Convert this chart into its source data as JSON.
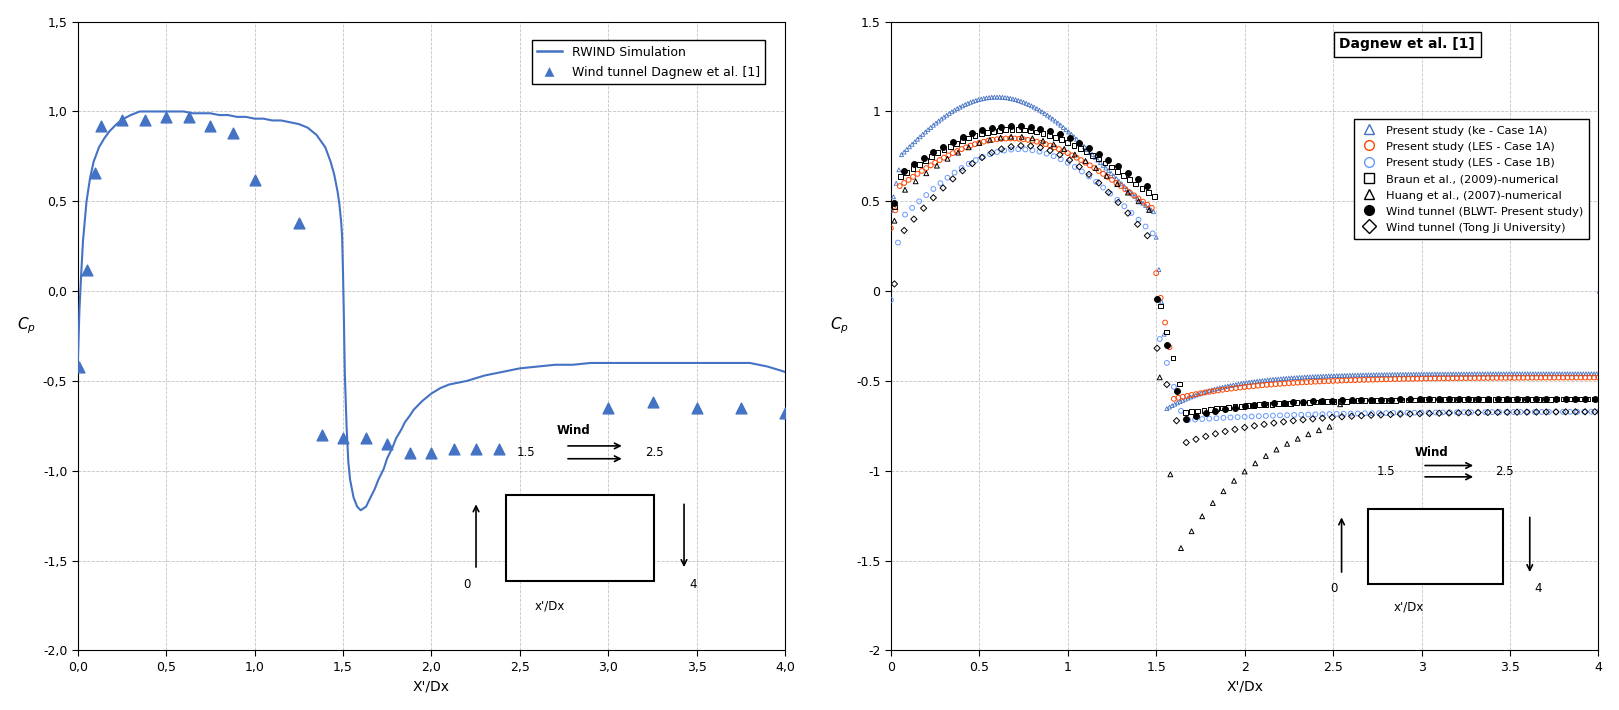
{
  "left_plot": {
    "xlabel": "X'/Dx",
    "ylabel": "C_p",
    "xlim": [
      0,
      4.0
    ],
    "ylim": [
      -2.0,
      1.5
    ],
    "xticks": [
      0.0,
      0.5,
      1.0,
      1.5,
      2.0,
      2.5,
      3.0,
      3.5,
      4.0
    ],
    "yticks": [
      -2.0,
      -1.5,
      -1.0,
      -0.5,
      0.0,
      0.5,
      1.0,
      1.5
    ],
    "line_color": "#4472C4",
    "line_x": [
      0.0,
      0.01,
      0.02,
      0.03,
      0.05,
      0.07,
      0.09,
      0.12,
      0.15,
      0.18,
      0.22,
      0.26,
      0.3,
      0.35,
      0.4,
      0.45,
      0.5,
      0.55,
      0.6,
      0.65,
      0.7,
      0.75,
      0.8,
      0.85,
      0.9,
      0.95,
      1.0,
      1.05,
      1.1,
      1.15,
      1.2,
      1.25,
      1.3,
      1.35,
      1.4,
      1.43,
      1.45,
      1.47,
      1.48,
      1.49,
      1.495,
      1.5,
      1.505,
      1.51,
      1.52,
      1.53,
      1.54,
      1.56,
      1.58,
      1.6,
      1.63,
      1.65,
      1.68,
      1.7,
      1.73,
      1.75,
      1.78,
      1.8,
      1.83,
      1.85,
      1.88,
      1.9,
      1.93,
      1.95,
      2.0,
      2.05,
      2.1,
      2.15,
      2.2,
      2.3,
      2.4,
      2.5,
      2.6,
      2.7,
      2.8,
      2.9,
      3.0,
      3.1,
      3.2,
      3.3,
      3.4,
      3.5,
      3.6,
      3.7,
      3.8,
      3.9,
      4.0
    ],
    "line_y": [
      -0.42,
      -0.1,
      0.1,
      0.28,
      0.5,
      0.63,
      0.72,
      0.8,
      0.85,
      0.89,
      0.93,
      0.96,
      0.98,
      1.0,
      1.0,
      1.0,
      1.0,
      1.0,
      1.0,
      0.99,
      0.99,
      0.99,
      0.98,
      0.98,
      0.97,
      0.97,
      0.96,
      0.96,
      0.95,
      0.95,
      0.94,
      0.93,
      0.91,
      0.87,
      0.8,
      0.72,
      0.65,
      0.55,
      0.48,
      0.38,
      0.3,
      0.1,
      -0.15,
      -0.45,
      -0.75,
      -0.95,
      -1.05,
      -1.15,
      -1.2,
      -1.22,
      -1.2,
      -1.16,
      -1.1,
      -1.05,
      -0.99,
      -0.93,
      -0.87,
      -0.82,
      -0.77,
      -0.73,
      -0.69,
      -0.66,
      -0.63,
      -0.61,
      -0.57,
      -0.54,
      -0.52,
      -0.51,
      -0.5,
      -0.47,
      -0.45,
      -0.43,
      -0.42,
      -0.41,
      -0.41,
      -0.4,
      -0.4,
      -0.4,
      -0.4,
      -0.4,
      -0.4,
      -0.4,
      -0.4,
      -0.4,
      -0.4,
      -0.42,
      -0.45
    ],
    "scatter_x": [
      0.01,
      0.05,
      0.1,
      0.13,
      0.25,
      0.38,
      0.5,
      0.63,
      0.75,
      0.88,
      1.0,
      1.25,
      1.38,
      1.5,
      1.63,
      1.75,
      1.88,
      2.0,
      2.13,
      2.25,
      2.38,
      3.0,
      3.25,
      3.5,
      3.75,
      4.0
    ],
    "scatter_y": [
      -0.42,
      0.12,
      0.66,
      0.92,
      0.95,
      0.95,
      0.97,
      0.97,
      0.92,
      0.88,
      0.62,
      0.38,
      -0.8,
      -0.82,
      -0.82,
      -0.85,
      -0.9,
      -0.9,
      -0.88,
      -0.88,
      -0.88,
      -0.65,
      -0.62,
      -0.65,
      -0.65,
      -0.68
    ],
    "legend_line": "RWIND Simulation",
    "legend_scatter": "Wind tunnel Dagnew et al. [1]"
  },
  "right_plot": {
    "title": "Dagnew et al. [1]",
    "xlabel": "X'/Dx",
    "ylabel": "C_p",
    "xlim": [
      0,
      4.0
    ],
    "ylim": [
      -2.0,
      1.5
    ],
    "xticks": [
      0,
      0.5,
      1,
      1.5,
      2,
      2.5,
      3,
      3.5,
      4
    ],
    "yticks": [
      -2.0,
      -1.5,
      -1.0,
      -0.5,
      0.0,
      0.5,
      1.0,
      1.5
    ],
    "series": {
      "ke_x_dense": true,
      "ke_x_start": 0.0,
      "ke_x_end": 4.0,
      "ke_x_step": 0.02,
      "les1a_x_start": 0.0,
      "les1a_x_end": 4.0,
      "les1a_x_step": 0.04,
      "braun_x_start": 0.02,
      "braun_x_end": 4.0,
      "braun_x_step": 0.04,
      "blwt_x_start": 0.02,
      "blwt_x_end": 4.0,
      "blwt_x_step": 0.06,
      "tongji_x_start": 0.02,
      "tongji_x_end": 4.0,
      "tongji_x_step": 0.06
    }
  },
  "colors": {
    "blue_dark": "#4472C4",
    "red": "#FF4500",
    "blue_light": "#6699FF",
    "black": "#000000"
  }
}
